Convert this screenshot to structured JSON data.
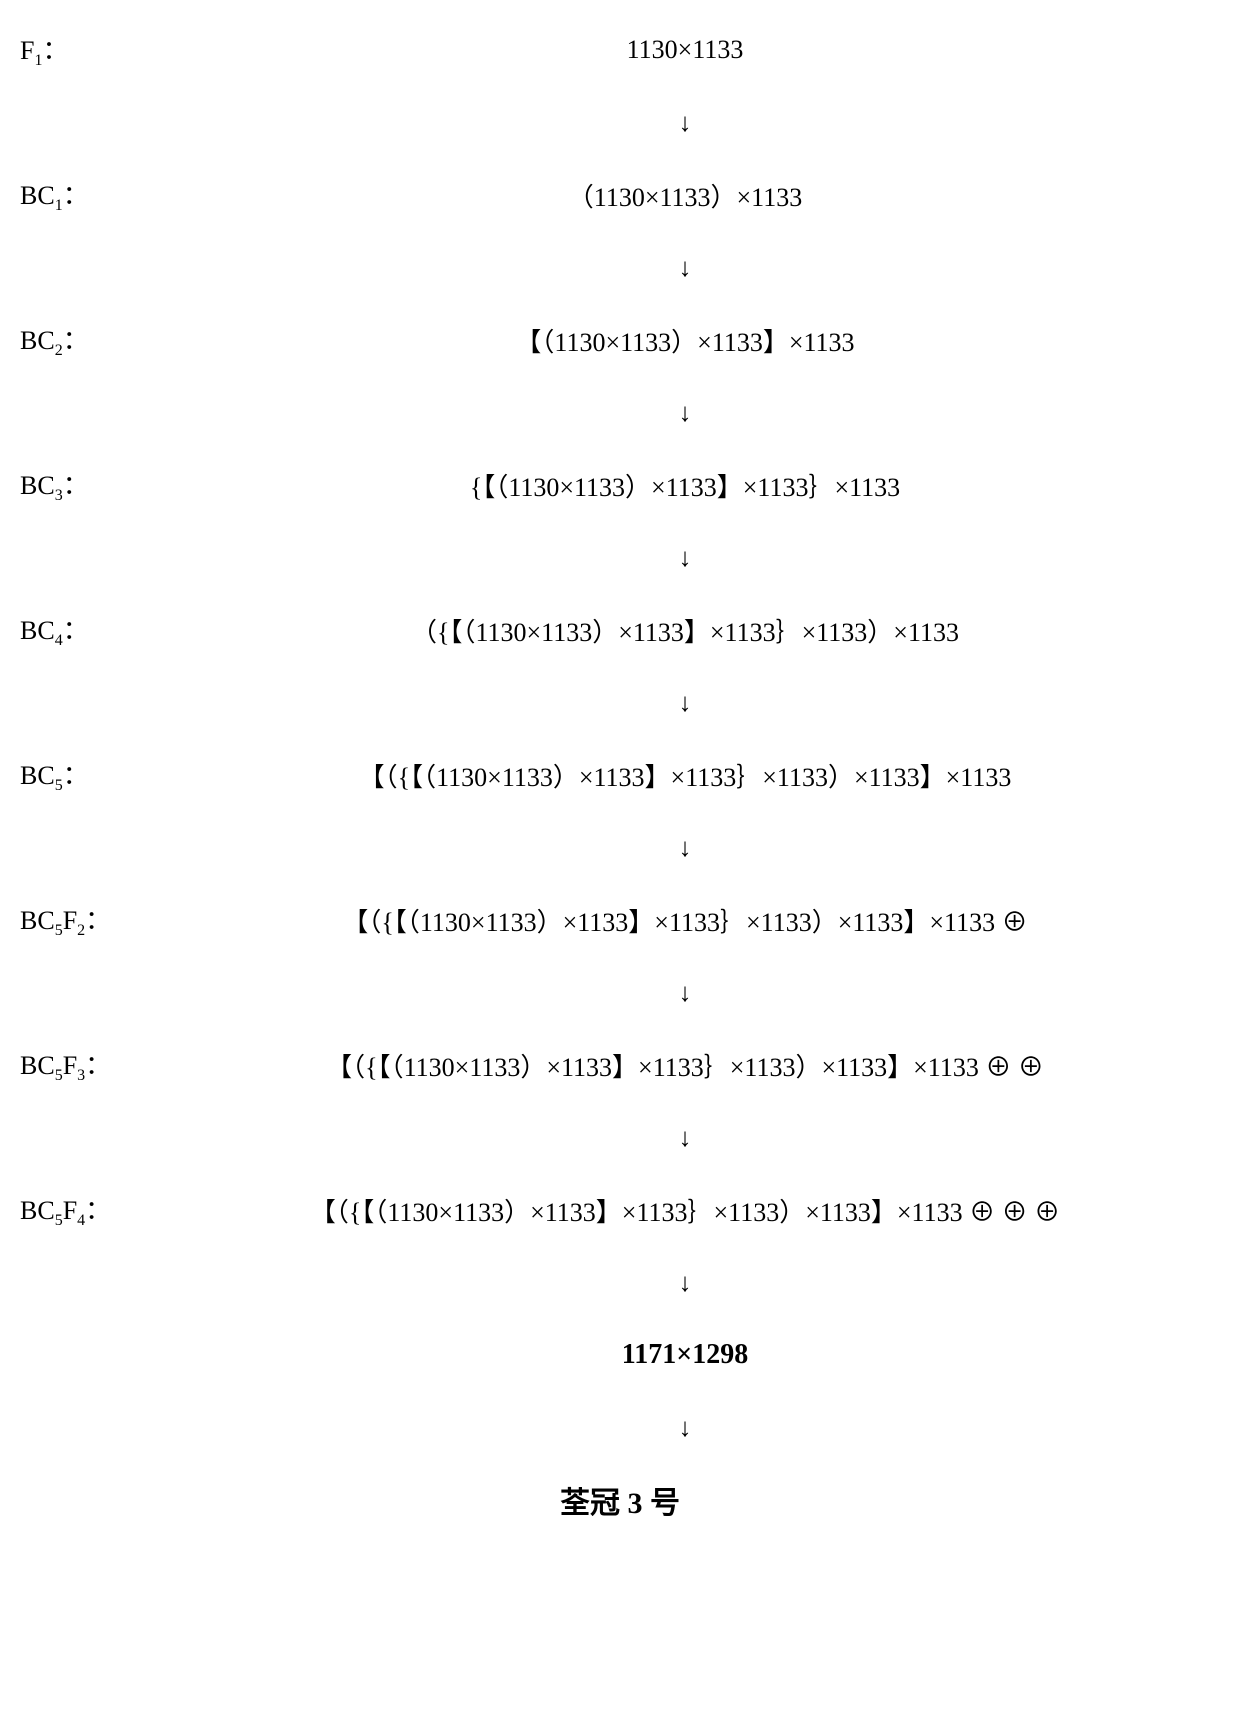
{
  "diagram": {
    "background_color": "#ffffff",
    "text_color": "#000000",
    "font_family": "Times New Roman, SimSun, serif",
    "label_fontsize": 26,
    "content_fontsize": 26,
    "final_fontsize": 28,
    "result_fontsize": 30,
    "arrow_glyph": "↓",
    "rows": [
      {
        "label_main": "F",
        "label_sub": "1",
        "label_suffix": "：",
        "content": "1130×1133"
      },
      {
        "label_main": "BC",
        "label_sub": "1",
        "label_suffix": "：",
        "content": "（1130×1133）×1133"
      },
      {
        "label_main": "BC",
        "label_sub": "2",
        "label_suffix": "：",
        "content": "【（1130×1133）×1133】×1133"
      },
      {
        "label_main": "BC",
        "label_sub": "3",
        "label_suffix": "：",
        "content": "{【（1130×1133）×1133】×1133｝×1133"
      },
      {
        "label_main": "BC",
        "label_sub": "4",
        "label_suffix": "：",
        "content": "（{【（1130×1133）×1133】×1133｝×1133）×1133"
      },
      {
        "label_main": "BC",
        "label_sub": "5",
        "label_suffix": "：",
        "content": "【（{【（1130×1133）×1133】×1133｝×1133）×1133】×1133"
      },
      {
        "label_main": "BC",
        "label_sub": "5",
        "label_extra": "F",
        "label_sub2": "2",
        "label_suffix": "：",
        "content": "【（{【（1130×1133）×1133】×1133｝×1133）×1133】×1133 ⊕"
      },
      {
        "label_main": "BC",
        "label_sub": "5",
        "label_extra": "F",
        "label_sub2": "3",
        "label_suffix": "：",
        "content": "【（{【（1130×1133）×1133】×1133｝×1133）×1133】×1133 ⊕ ⊕"
      },
      {
        "label_main": "BC",
        "label_sub": "5",
        "label_extra": "F",
        "label_sub2": "4",
        "label_suffix": "：",
        "content": "【（{【（1130×1133）×1133】×1133｝×1133）×1133】×1133 ⊕ ⊕ ⊕"
      }
    ],
    "final": "1171×1298",
    "result": "荃冠 3 号"
  }
}
